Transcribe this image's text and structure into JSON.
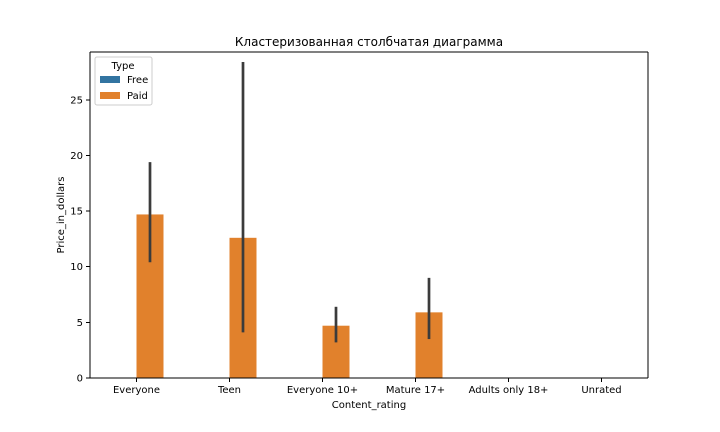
{
  "chart_data": {
    "type": "bar",
    "title": "Кластеризованная столбчатая диаграмма",
    "xlabel": "Content_rating",
    "ylabel": "Price_in_dollars",
    "categories": [
      "Everyone",
      "Teen",
      "Everyone 10+",
      "Mature 17+",
      "Adults only 18+",
      "Unrated"
    ],
    "ylim": [
      0,
      29.3
    ],
    "yticks": [
      0,
      5,
      10,
      15,
      20,
      25
    ],
    "grid": false,
    "legend": {
      "title": "Type",
      "placement": "top-left",
      "entries": [
        "Free",
        "Paid"
      ]
    },
    "colors": {
      "Free": "#3274a1",
      "Paid": "#e1812c",
      "errorbar": "#3b3b3b"
    },
    "series": [
      {
        "name": "Free",
        "values": [
          0,
          0,
          0,
          0,
          0,
          0
        ],
        "error_low": [
          0,
          0,
          0,
          0,
          0,
          0
        ],
        "error_high": [
          0,
          0,
          0,
          0,
          0,
          0
        ]
      },
      {
        "name": "Paid",
        "values": [
          14.7,
          12.6,
          4.7,
          5.9,
          null,
          null
        ],
        "error_low": [
          10.4,
          4.1,
          3.2,
          3.5,
          null,
          null
        ],
        "error_high": [
          19.4,
          28.4,
          6.4,
          9.0,
          null,
          null
        ]
      }
    ]
  }
}
